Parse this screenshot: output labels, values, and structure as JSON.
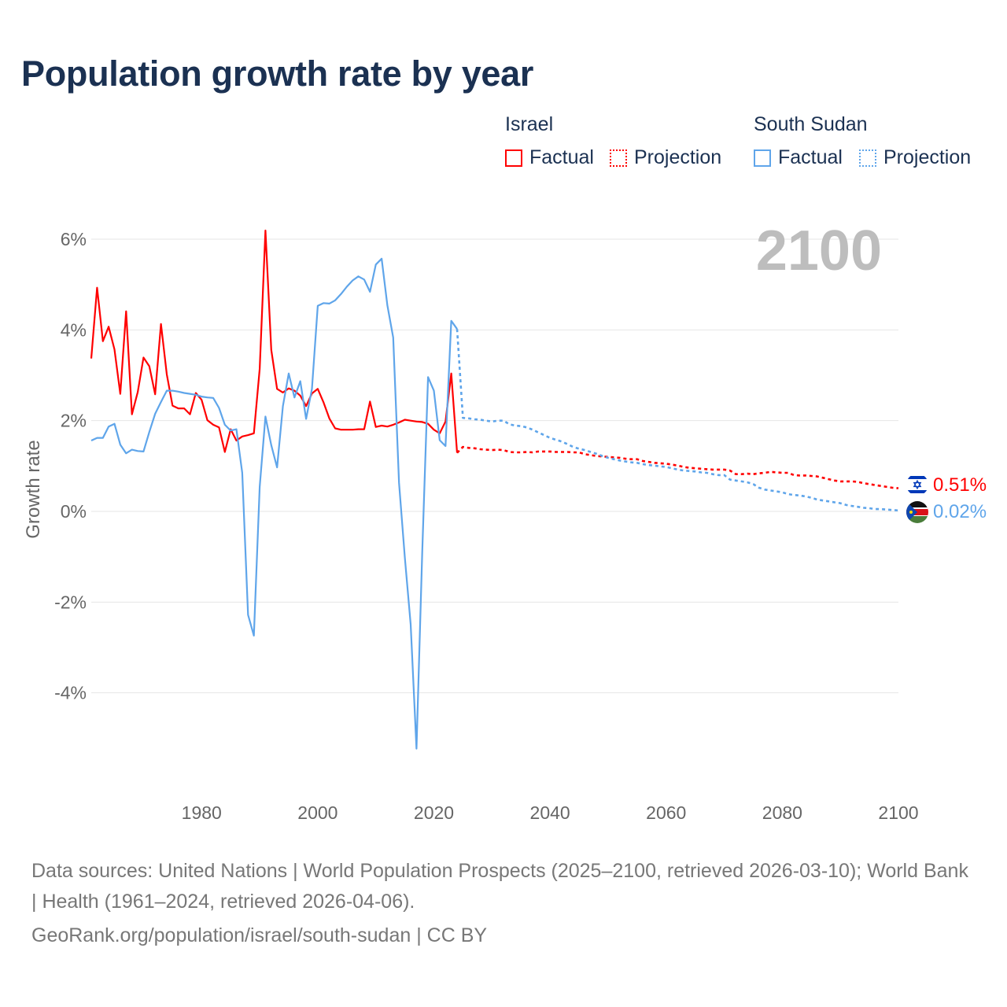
{
  "title": "Population growth rate by year",
  "legend": {
    "groups": [
      {
        "name": "Israel",
        "factual": "Factual",
        "projection": "Projection",
        "color": "#ff0000"
      },
      {
        "name": "South Sudan",
        "factual": "Factual",
        "projection": "Projection",
        "color": "#5fa5ea"
      }
    ]
  },
  "year_label": "2100",
  "end_labels": {
    "israel": "0.51%",
    "south_sudan": "0.02%"
  },
  "sources": {
    "line1": "Data sources: United Nations | World Population Prospects (2025–2100, retrieved 2026-03-10); World Bank | Health (1961–2024, retrieved 2026-04-06).",
    "line2": "GeoRank.org/population/israel/south-sudan | CC BY"
  },
  "chart_data": {
    "type": "line",
    "title": "Population growth rate by year",
    "xlabel": "",
    "ylabel": "Growth rate",
    "xlim": [
      1961,
      2100
    ],
    "ylim": [
      -5.5,
      6.3
    ],
    "x_ticks": [
      1980,
      2000,
      2020,
      2040,
      2060,
      2080,
      2100
    ],
    "x_tick_labels": [
      "1980",
      "2000",
      "2020",
      "2040",
      "2060",
      "2080",
      "2100"
    ],
    "y_ticks": [
      6,
      4,
      2,
      0,
      -2,
      -4
    ],
    "y_tick_labels": [
      "6%",
      "4%",
      "2%",
      "0%",
      "-2%",
      "-4%"
    ],
    "grid": true,
    "legend_position": "top-right",
    "series": [
      {
        "name": "Israel",
        "kind": "Factual",
        "color": "#ff0000",
        "x_start": 1961,
        "values": [
          3.37,
          4.93,
          3.75,
          4.07,
          3.57,
          2.59,
          4.41,
          2.14,
          2.63,
          3.39,
          3.2,
          2.58,
          4.13,
          3.02,
          2.33,
          2.27,
          2.27,
          2.14,
          2.61,
          2.46,
          2.01,
          1.91,
          1.85,
          1.31,
          1.81,
          1.56,
          1.65,
          1.68,
          1.72,
          3.14,
          6.19,
          3.56,
          2.7,
          2.62,
          2.71,
          2.66,
          2.55,
          2.32,
          2.6,
          2.7,
          2.4,
          2.05,
          1.83,
          1.8,
          1.8,
          1.8,
          1.81,
          1.81,
          2.42,
          1.86,
          1.89,
          1.87,
          1.91,
          1.96,
          2.02,
          2.0,
          1.98,
          1.97,
          1.93,
          1.8,
          1.72,
          1.98,
          3.04,
          1.29
        ]
      },
      {
        "name": "Israel",
        "kind": "Projection",
        "color": "#ff0000",
        "x_start": 2025,
        "values": [
          1.42,
          1.4,
          1.39,
          1.37,
          1.36,
          1.35,
          1.36,
          1.35,
          1.31,
          1.3,
          1.3,
          1.31,
          1.3,
          1.32,
          1.32,
          1.32,
          1.31,
          1.31,
          1.31,
          1.3,
          1.3,
          1.26,
          1.24,
          1.22,
          1.21,
          1.2,
          1.19,
          1.18,
          1.16,
          1.15,
          1.15,
          1.11,
          1.09,
          1.07,
          1.06,
          1.05,
          1.03,
          1.01,
          0.98,
          0.96,
          0.95,
          0.94,
          0.93,
          0.92,
          0.92,
          0.92,
          0.9,
          0.82,
          0.82,
          0.83,
          0.82,
          0.84,
          0.85,
          0.87,
          0.86,
          0.85,
          0.85,
          0.8,
          0.79,
          0.79,
          0.78,
          0.77,
          0.74,
          0.71,
          0.68,
          0.66,
          0.66,
          0.66,
          0.65,
          0.62,
          0.6,
          0.58,
          0.56,
          0.54,
          0.52,
          0.51
        ]
      },
      {
        "name": "South Sudan",
        "kind": "Factual",
        "color": "#5fa5ea",
        "x_start": 1961,
        "values": [
          1.56,
          1.62,
          1.62,
          1.87,
          1.93,
          1.47,
          1.28,
          1.36,
          1.33,
          1.32,
          1.75,
          2.15,
          2.41,
          2.66,
          2.66,
          2.64,
          2.61,
          2.59,
          2.57,
          2.53,
          2.51,
          2.5,
          2.28,
          1.91,
          1.78,
          1.81,
          0.85,
          -2.28,
          -2.74,
          0.54,
          2.09,
          1.46,
          0.97,
          2.32,
          3.04,
          2.51,
          2.87,
          2.04,
          2.7,
          4.53,
          4.59,
          4.58,
          4.65,
          4.79,
          4.95,
          5.09,
          5.18,
          5.11,
          4.84,
          5.44,
          5.57,
          4.54,
          3.83,
          0.63,
          -1.02,
          -2.49,
          -5.23,
          -0.9,
          2.96,
          2.66,
          1.57,
          1.44,
          4.2,
          4.02
        ]
      },
      {
        "name": "South Sudan",
        "kind": "Projection",
        "color": "#5fa5ea",
        "x_start": 2025,
        "values": [
          2.06,
          2.05,
          2.03,
          2.02,
          2.0,
          1.98,
          2.0,
          2.0,
          1.92,
          1.89,
          1.88,
          1.85,
          1.8,
          1.74,
          1.68,
          1.62,
          1.58,
          1.54,
          1.48,
          1.42,
          1.38,
          1.35,
          1.31,
          1.27,
          1.22,
          1.18,
          1.15,
          1.12,
          1.1,
          1.08,
          1.07,
          1.04,
          1.02,
          1.01,
          0.99,
          0.98,
          0.95,
          0.92,
          0.9,
          0.89,
          0.88,
          0.86,
          0.85,
          0.82,
          0.8,
          0.8,
          0.7,
          0.68,
          0.66,
          0.64,
          0.6,
          0.52,
          0.48,
          0.46,
          0.44,
          0.42,
          0.38,
          0.36,
          0.35,
          0.33,
          0.3,
          0.26,
          0.24,
          0.22,
          0.2,
          0.18,
          0.14,
          0.12,
          0.1,
          0.08,
          0.07,
          0.05,
          0.05,
          0.04,
          0.03,
          0.02
        ]
      }
    ]
  }
}
